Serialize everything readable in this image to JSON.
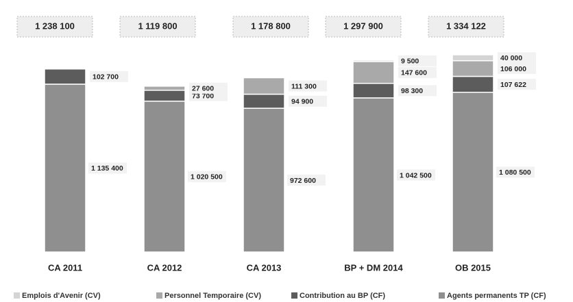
{
  "chart_data": {
    "type": "stacked_bar",
    "categories": [
      "CA 2011",
      "CA 2012",
      "CA 2013",
      "BP + DM 2014",
      "OB 2015"
    ],
    "totals": [
      1238100,
      1119800,
      1178800,
      1297900,
      1334122
    ],
    "totals_labels": [
      "1 238 100",
      "1 119 800",
      "1 178 800",
      "1 297 900",
      "1 334 122"
    ],
    "series": [
      {
        "name": "Emplois d'Avenir (CV)",
        "color": "#d4d4d4",
        "values": [
          null,
          null,
          null,
          9500,
          40000
        ],
        "value_labels": [
          null,
          null,
          null,
          "9 500",
          "40 000"
        ]
      },
      {
        "name": "Personnel Temporaire (CV)",
        "color": "#a9a9a9",
        "values": [
          null,
          27600,
          111300,
          147600,
          106000
        ],
        "value_labels": [
          null,
          "27 600",
          "111 300",
          "147 600",
          "106 000"
        ]
      },
      {
        "name": "Contribution au BP (CF)",
        "color": "#5c5c5c",
        "values": [
          102700,
          73700,
          94900,
          98300,
          107622
        ],
        "value_labels": [
          "102 700",
          "73 700",
          "94 900",
          "98 300",
          "107 622"
        ]
      },
      {
        "name": "Agents permanents TP (CF)",
        "color": "#8f8f8f",
        "values": [
          1135400,
          1020500,
          972600,
          1042500,
          1080500
        ],
        "value_labels": [
          "1 135 400",
          "1 020 500",
          "972 600",
          "1 042 500",
          "1 080 500"
        ]
      }
    ]
  }
}
